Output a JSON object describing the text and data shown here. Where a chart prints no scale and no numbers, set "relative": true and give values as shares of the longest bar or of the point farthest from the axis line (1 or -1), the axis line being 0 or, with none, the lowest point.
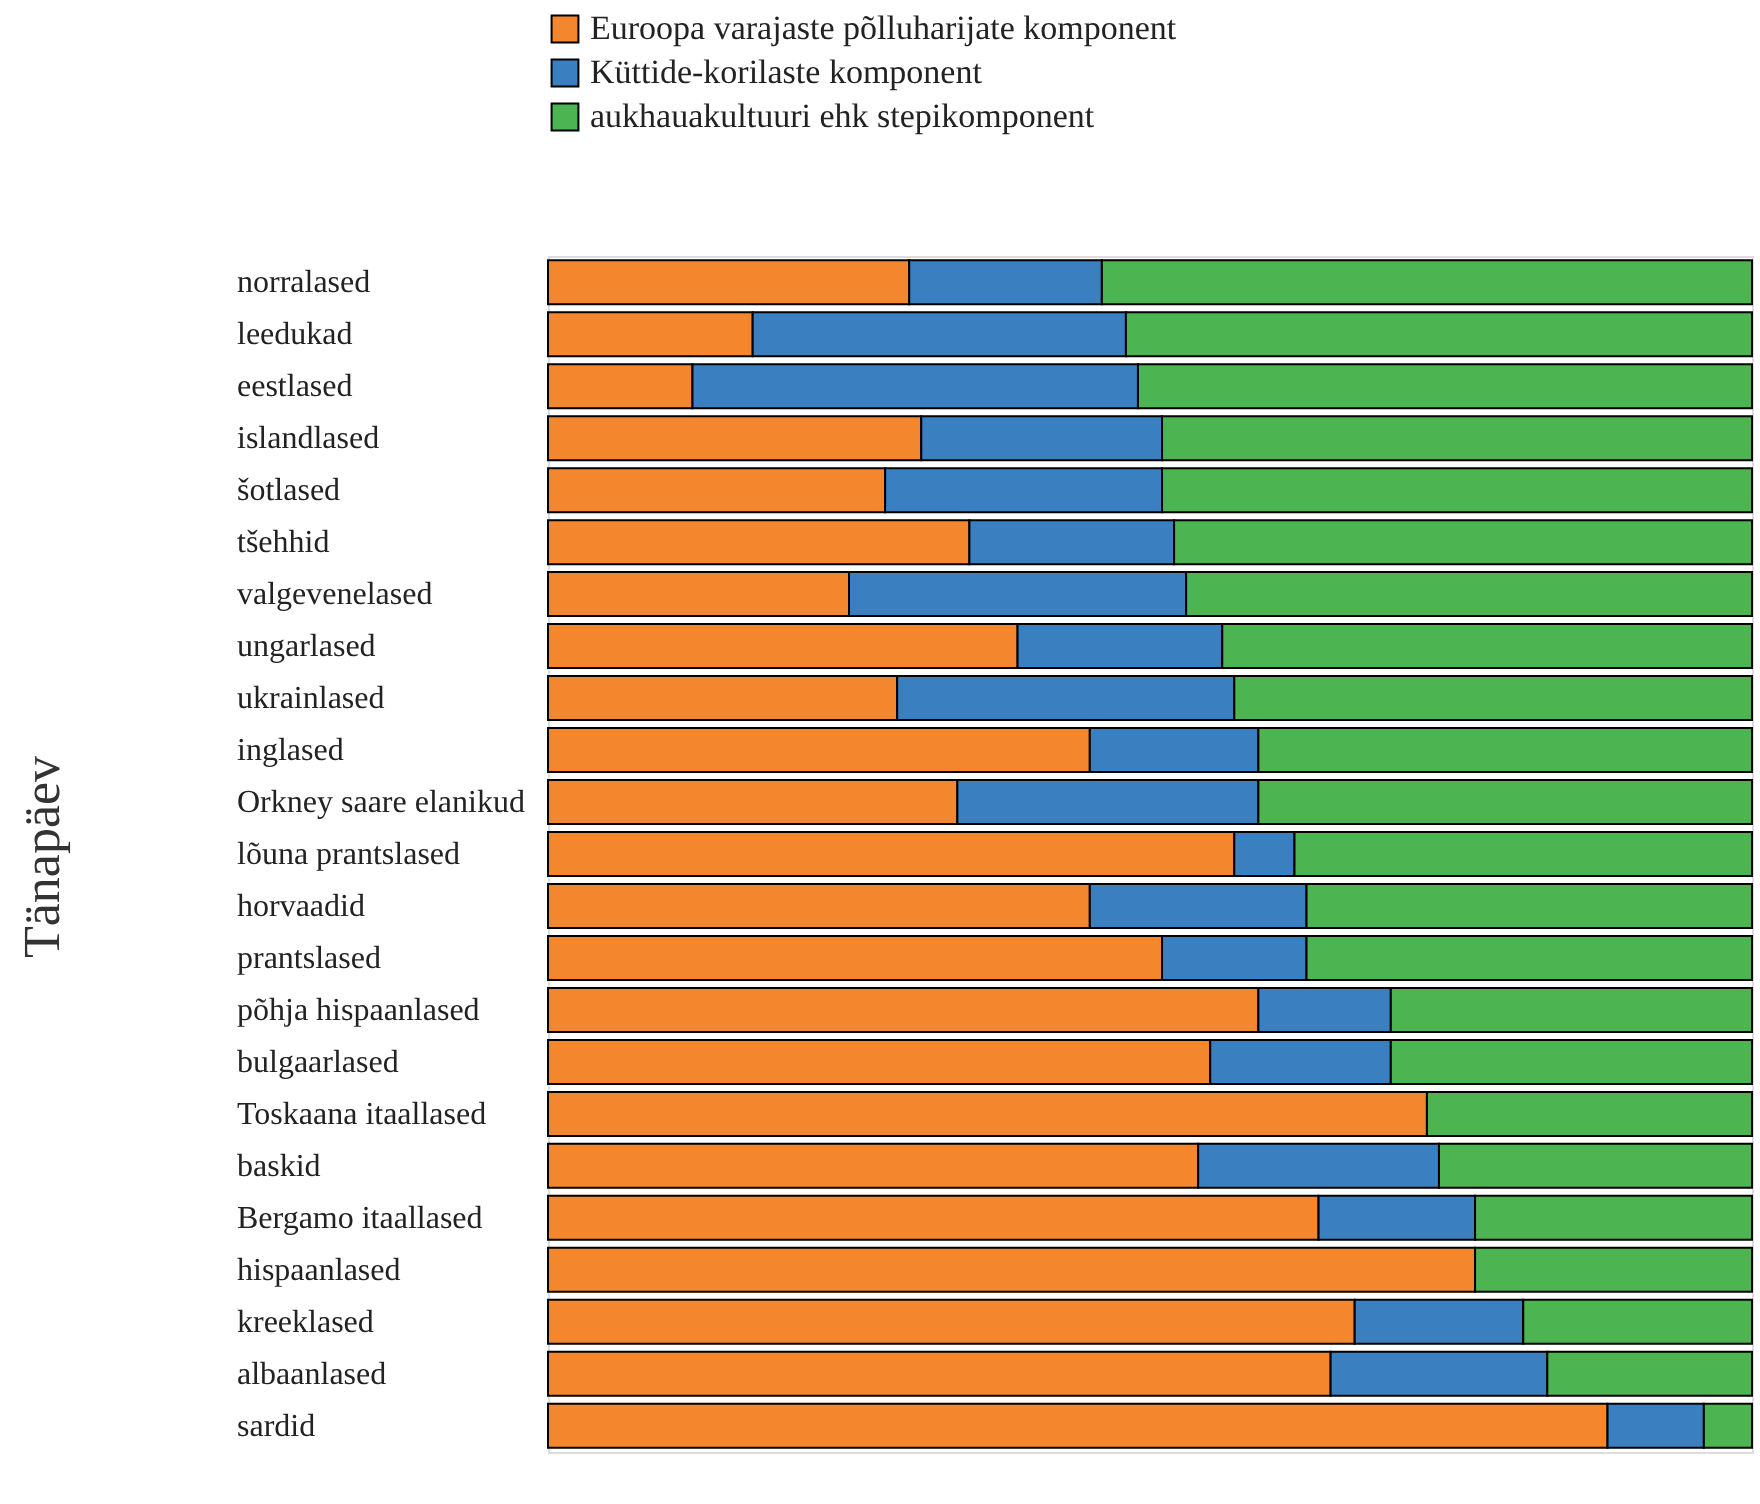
{
  "chart_data": {
    "type": "bar",
    "orientation": "horizontal",
    "stacked": true,
    "relative": true,
    "ylabel": "Tänapäev",
    "legend": "top",
    "categories": [
      "norralased",
      "leedukad",
      "eestlased",
      "islandlased",
      "šotlased",
      "tšehhid",
      "valgevenelased",
      "ungarlased",
      "ukrainlased",
      "inglased",
      "Orkney saare elanikud",
      "lõuna prantslased",
      "horvaadid",
      "prantslased",
      "põhja hispaanlased",
      "bulgaarlased",
      "Toskaana itaallased",
      "baskid",
      "Bergamo itaallased",
      "hispaanlased",
      "kreeklased",
      "albaanlased",
      "sardid"
    ],
    "series": [
      {
        "name": "Euroopa varajaste põlluharijate komponent",
        "color": "#f4862e",
        "values": [
          0.3,
          0.17,
          0.12,
          0.31,
          0.28,
          0.35,
          0.25,
          0.39,
          0.29,
          0.45,
          0.34,
          0.57,
          0.45,
          0.51,
          0.59,
          0.55,
          0.73,
          0.54,
          0.64,
          0.77,
          0.67,
          0.65,
          0.88
        ]
      },
      {
        "name": "Küttide-korilaste komponent",
        "color": "#3a7fc0",
        "values": [
          0.16,
          0.31,
          0.37,
          0.2,
          0.23,
          0.17,
          0.28,
          0.17,
          0.28,
          0.14,
          0.25,
          0.05,
          0.18,
          0.12,
          0.11,
          0.15,
          0,
          0.2,
          0.13,
          0,
          0.14,
          0.18,
          0.08
        ]
      },
      {
        "name": "aukhauakultuuri ehk stepikomponent",
        "color": "#4cb551",
        "values": [
          0.54,
          0.52,
          0.51,
          0.49,
          0.49,
          0.48,
          0.47,
          0.44,
          0.43,
          0.41,
          0.41,
          0.38,
          0.37,
          0.37,
          0.3,
          0.3,
          0.27,
          0.26,
          0.23,
          0.23,
          0.19,
          0.17,
          0.04
        ]
      }
    ]
  }
}
